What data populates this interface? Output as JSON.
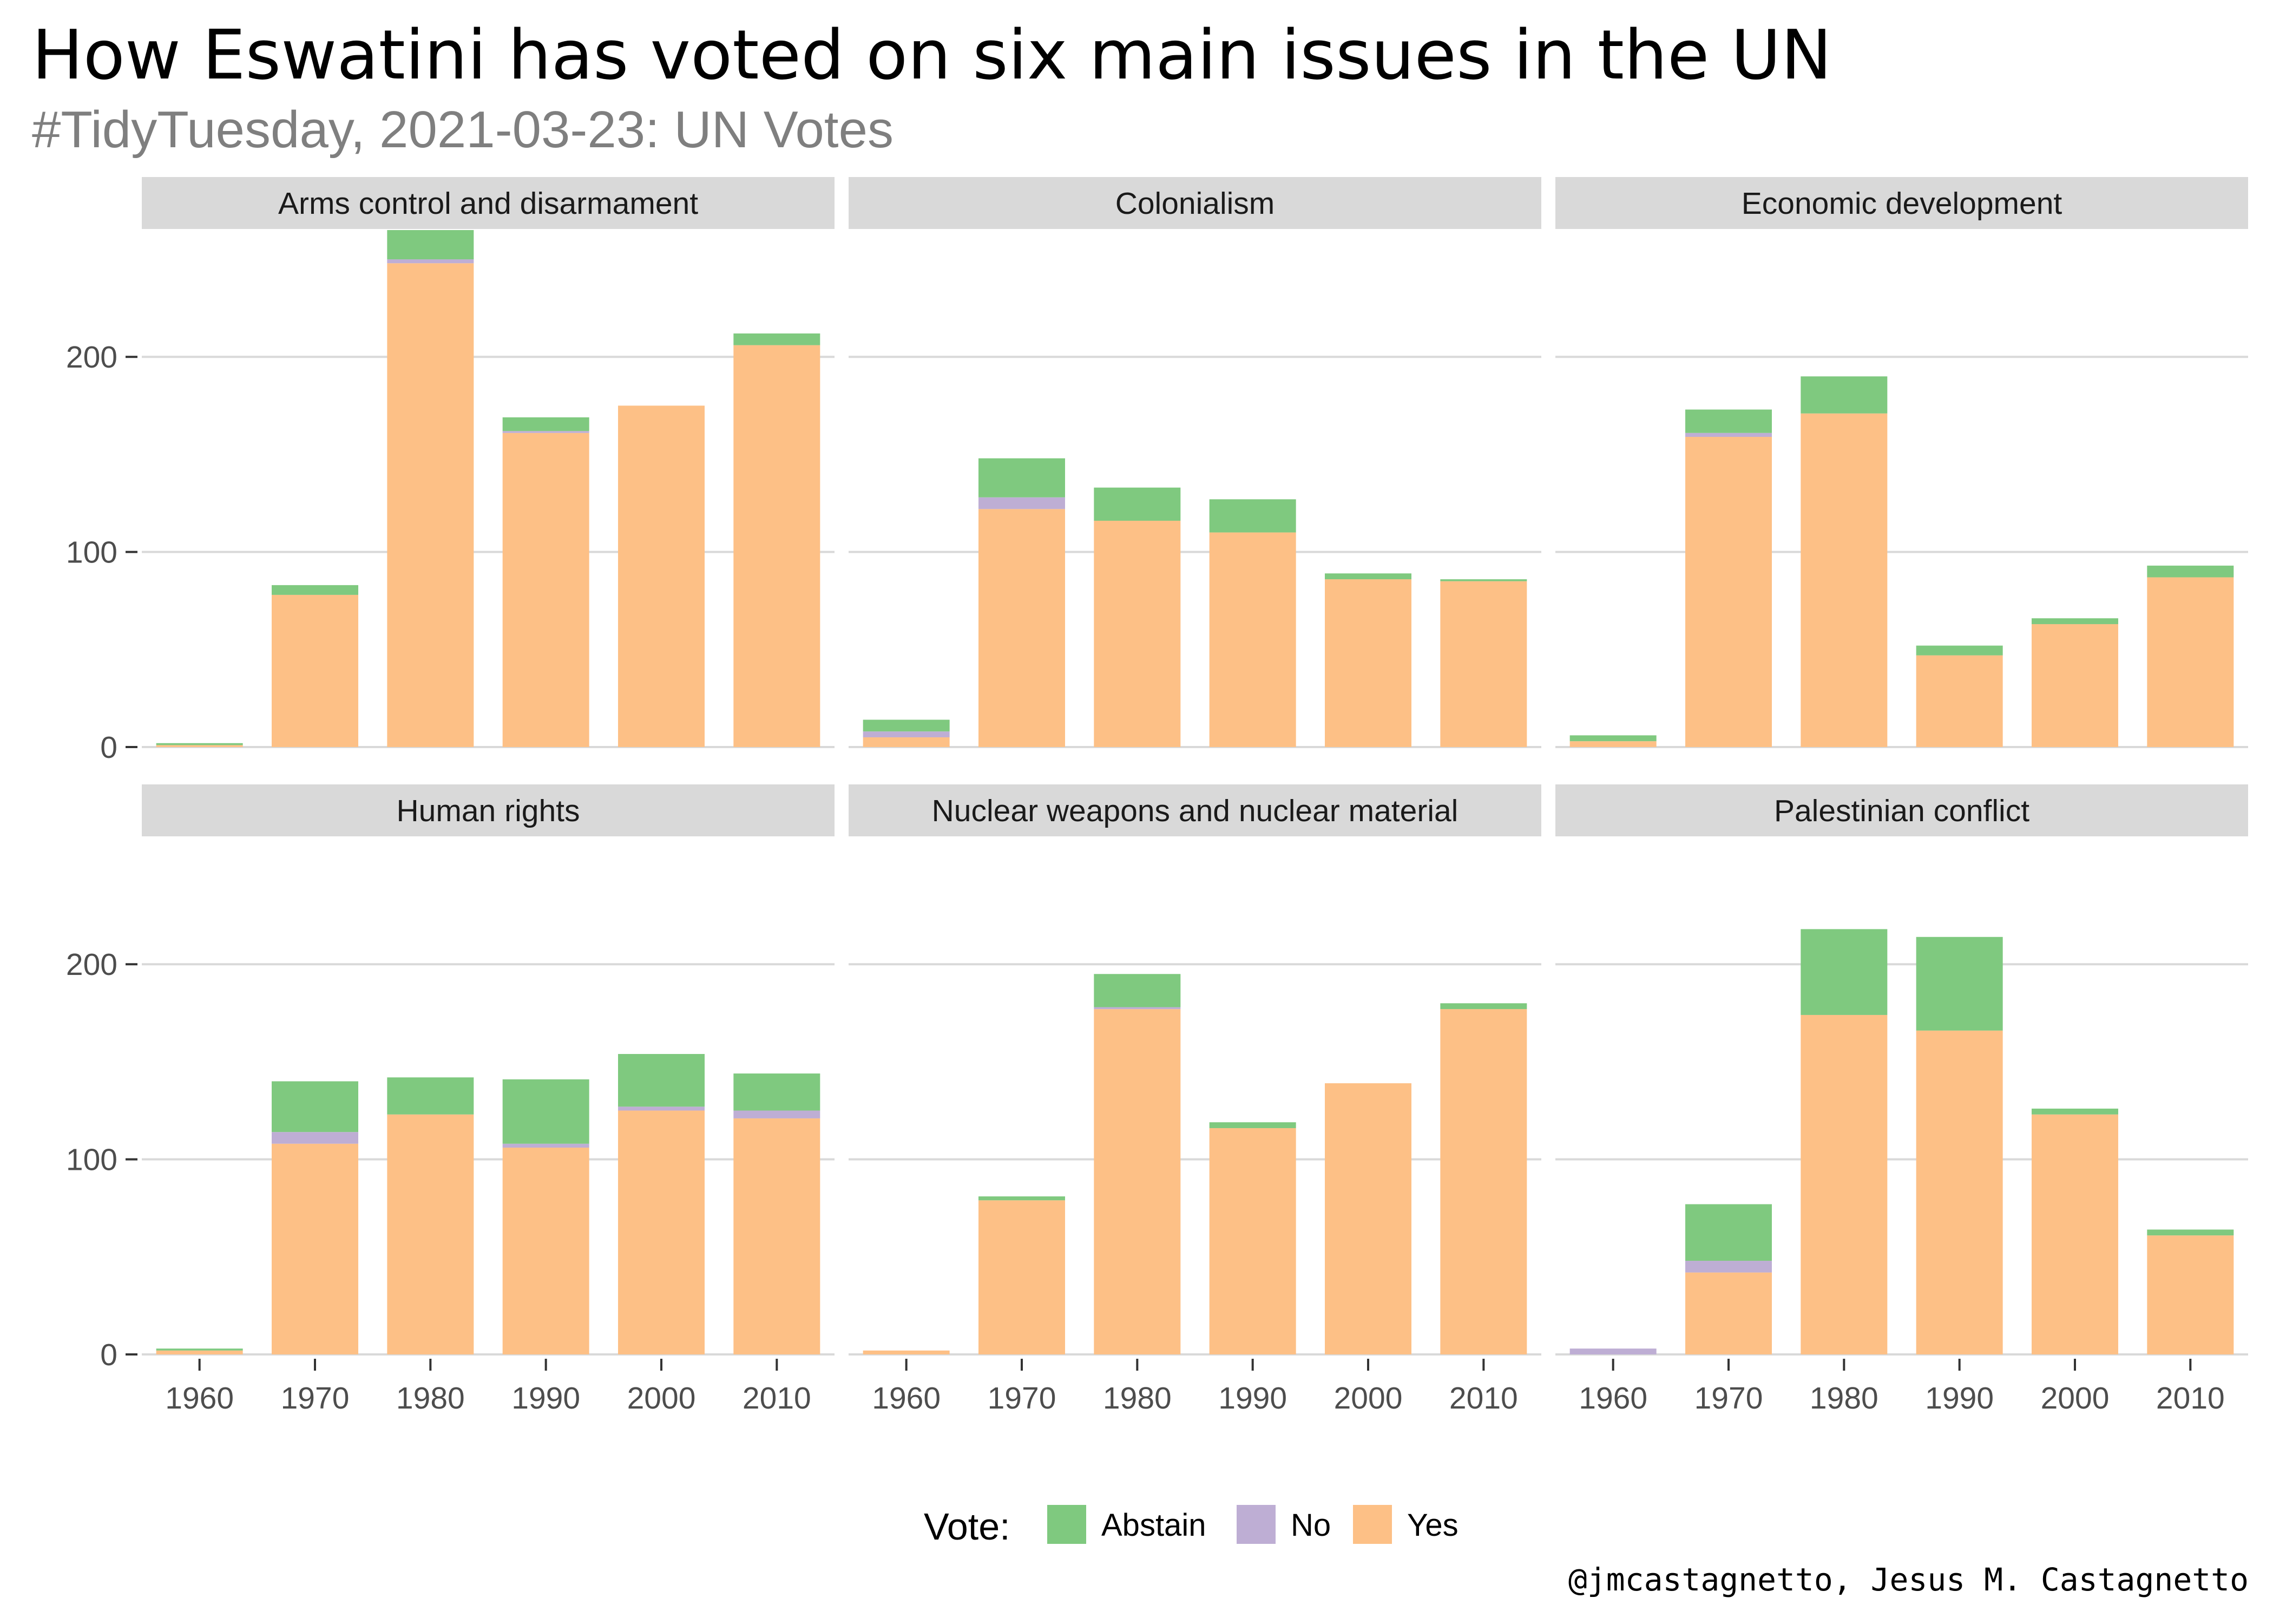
{
  "title": "How Eswatini has voted on six main issues in the UN",
  "subtitle": "#TidyTuesday, 2021-03-23: UN Votes",
  "caption": "@jmcastagnetto, Jesus M. Castagnetto",
  "colors": {
    "Abstain": "#7FC97F",
    "No": "#BEAED4",
    "Yes": "#FDC086",
    "strip": "#D9D9D9",
    "grid": "#D9D9D9",
    "title": "#000000",
    "subtitle": "#7F7F7F",
    "tick": "#4D4D4D"
  },
  "chart_data": {
    "type": "bar",
    "stacked": true,
    "categories": [
      "1960",
      "1970",
      "1980",
      "1990",
      "2000",
      "2010"
    ],
    "y_ticks": [
      0,
      100,
      200
    ],
    "ylim": [
      0,
      265
    ],
    "grid": true,
    "legend": {
      "title": "Vote:",
      "position": "bottom",
      "entries": [
        "Abstain",
        "No",
        "Yes"
      ]
    },
    "stack_order": [
      "Yes",
      "No",
      "Abstain"
    ],
    "panels": [
      {
        "name": "Arms control and disarmament",
        "series": [
          {
            "name": "Yes",
            "values": [
              1,
              78,
              248,
              161,
              175,
              206
            ]
          },
          {
            "name": "No",
            "values": [
              0,
              0,
              2,
              1,
              0,
              0
            ]
          },
          {
            "name": "Abstain",
            "values": [
              1,
              5,
              15,
              7,
              0,
              6
            ]
          }
        ]
      },
      {
        "name": "Colonialism",
        "series": [
          {
            "name": "Yes",
            "values": [
              5,
              122,
              116,
              110,
              86,
              85
            ]
          },
          {
            "name": "No",
            "values": [
              3,
              6,
              0,
              0,
              0,
              0
            ]
          },
          {
            "name": "Abstain",
            "values": [
              6,
              20,
              17,
              17,
              3,
              1
            ]
          }
        ]
      },
      {
        "name": "Economic development",
        "series": [
          {
            "name": "Yes",
            "values": [
              3,
              159,
              171,
              47,
              63,
              87
            ]
          },
          {
            "name": "No",
            "values": [
              0,
              2,
              0,
              0,
              0,
              0
            ]
          },
          {
            "name": "Abstain",
            "values": [
              3,
              12,
              19,
              5,
              3,
              6
            ]
          }
        ]
      },
      {
        "name": "Human rights",
        "series": [
          {
            "name": "Yes",
            "values": [
              2,
              108,
              123,
              106,
              125,
              121
            ]
          },
          {
            "name": "No",
            "values": [
              0,
              6,
              0,
              2,
              2,
              4
            ]
          },
          {
            "name": "Abstain",
            "values": [
              1,
              26,
              19,
              33,
              27,
              19
            ]
          }
        ]
      },
      {
        "name": "Nuclear weapons and nuclear material",
        "series": [
          {
            "name": "Yes",
            "values": [
              2,
              79,
              177,
              116,
              139,
              177
            ]
          },
          {
            "name": "No",
            "values": [
              0,
              0,
              1,
              0,
              0,
              0
            ]
          },
          {
            "name": "Abstain",
            "values": [
              0,
              2,
              17,
              3,
              0,
              3
            ]
          }
        ]
      },
      {
        "name": "Palestinian conflict",
        "series": [
          {
            "name": "Yes",
            "values": [
              0,
              42,
              174,
              166,
              123,
              61
            ]
          },
          {
            "name": "No",
            "values": [
              3,
              6,
              0,
              0,
              0,
              0
            ]
          },
          {
            "name": "Abstain",
            "values": [
              0,
              29,
              44,
              48,
              3,
              3
            ]
          }
        ]
      }
    ]
  }
}
